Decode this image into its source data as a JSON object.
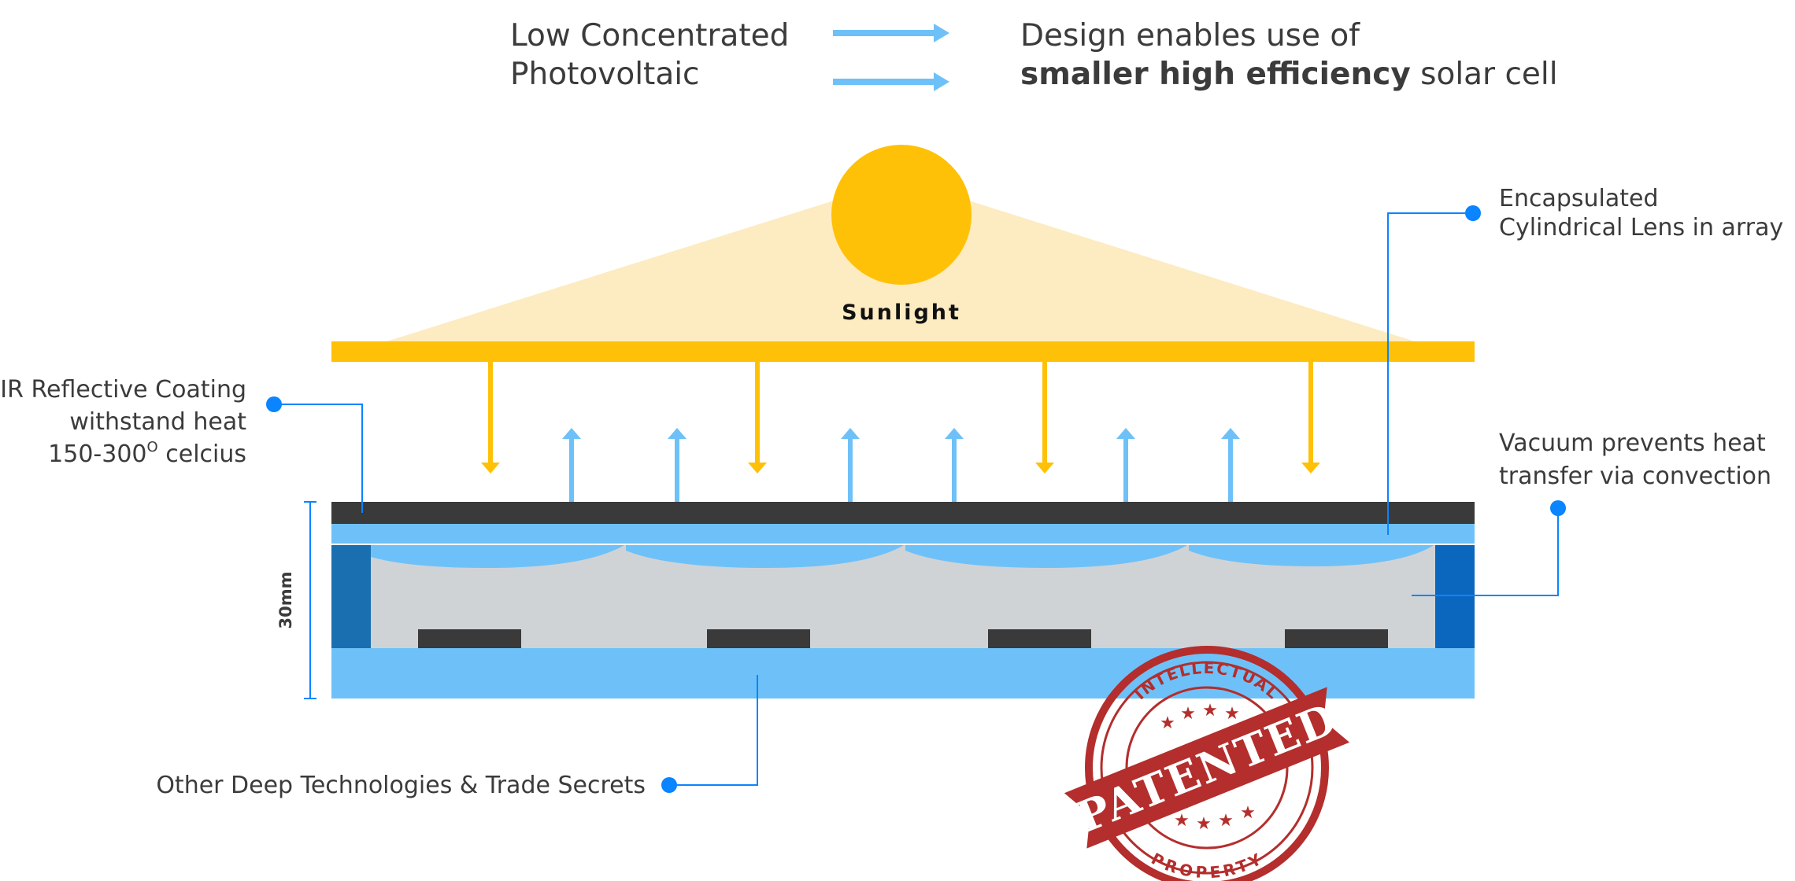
{
  "header": {
    "left_line1": "Low Concentrated",
    "left_line2": "Photovoltaic",
    "right_line1": "Design enables use of",
    "right_line2_bold": "smaller high efficiency",
    "right_line2_rest": " solar cell"
  },
  "sun": {
    "label": "Sunlight"
  },
  "callouts": {
    "ir_line1": "IR Reflective Coating",
    "ir_line2": "withstand heat",
    "ir_line3_pre": "150-300",
    "ir_line3_sup": "O",
    "ir_line3_post": " celcius",
    "lens_line1": "Encapsulated",
    "lens_line2": "Cylindrical Lens in array",
    "vacuum_line1": "Vacuum prevents heat",
    "vacuum_line2": "transfer via convection",
    "deep_tech": "Other Deep Technologies & Trade Secrets"
  },
  "dimension": {
    "label": "30mm"
  },
  "stamp": {
    "top": "INTELLECTUAL",
    "main": "PATENTED",
    "bottom": "PROPERTY"
  },
  "colors": {
    "sun": "#FFC107",
    "sun_glow": "#FDEBC1",
    "light_blue": "#6EC1F8",
    "dark_bar": "#3A3A3A",
    "vacuum": "#D0D3D6",
    "side_wall": "#1A6FB0",
    "callout_dot": "#0A84FF",
    "stamp_red": "#B32E2C"
  }
}
